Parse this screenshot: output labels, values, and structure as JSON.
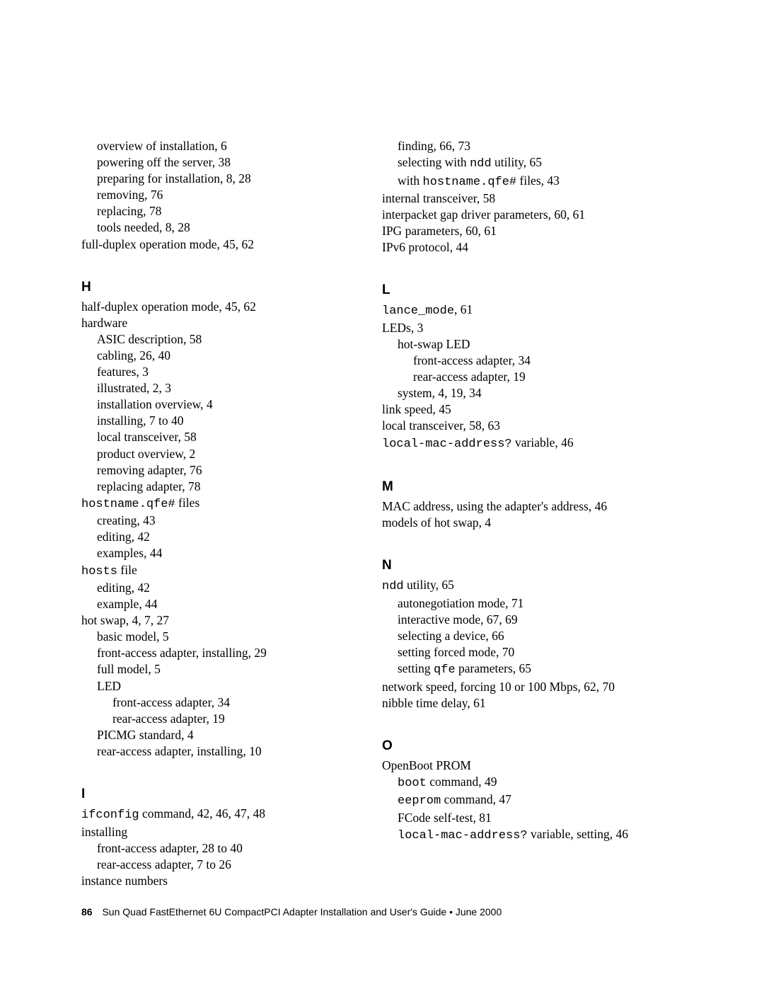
{
  "leftCol": {
    "top": [
      {
        "t": "overview of installation,  6",
        "i": 1
      },
      {
        "t": "powering off the server,  38",
        "i": 1
      },
      {
        "t": "preparing for installation,  8, 28",
        "i": 1
      },
      {
        "t": "removing,  76",
        "i": 1
      },
      {
        "t": "replacing,  78",
        "i": 1
      },
      {
        "t": "tools needed,  8, 28",
        "i": 1
      },
      {
        "t": "full-duplex operation mode,  45, 62",
        "i": 0
      }
    ],
    "H_heading": "H",
    "H": [
      {
        "t": "half-duplex operation mode,  45, 62",
        "i": 0
      },
      {
        "t": "hardware",
        "i": 0
      },
      {
        "t": "ASIC description,  58",
        "i": 1
      },
      {
        "t": "cabling,  26, 40",
        "i": 1
      },
      {
        "t": "features,  3",
        "i": 1
      },
      {
        "t": "illustrated,  2, 3",
        "i": 1
      },
      {
        "t": "installation overview,  4",
        "i": 1
      },
      {
        "t": "installing,  7 to 40",
        "i": 1
      },
      {
        "t": "local transceiver,  58",
        "i": 1
      },
      {
        "t": "product overview,  2",
        "i": 1
      },
      {
        "t": "removing adapter,  76",
        "i": 1
      },
      {
        "t": "replacing adapter,  78",
        "i": 1
      },
      {
        "pre": "hostname.qfe#",
        "post": " files",
        "i": 0,
        "monoFirst": true
      },
      {
        "t": "creating,  43",
        "i": 1
      },
      {
        "t": "editing,  42",
        "i": 1
      },
      {
        "t": "examples,  44",
        "i": 1
      },
      {
        "pre": "hosts",
        "post": " file",
        "i": 0,
        "monoFirst": true
      },
      {
        "t": "editing,  42",
        "i": 1
      },
      {
        "t": "example,  44",
        "i": 1
      },
      {
        "t": "hot swap,  4, 7, 27",
        "i": 0
      },
      {
        "t": "basic model,  5",
        "i": 1
      },
      {
        "t": "front-access adapter, installing,  29",
        "i": 1
      },
      {
        "t": "full model,  5",
        "i": 1
      },
      {
        "t": "LED",
        "i": 1
      },
      {
        "t": "front-access adapter,  34",
        "i": 2
      },
      {
        "t": "rear-access adapter,  19",
        "i": 2
      },
      {
        "t": "PICMG standard,  4",
        "i": 1
      },
      {
        "t": "rear-access adapter, installing,  10",
        "i": 1
      }
    ],
    "I_heading": "I",
    "I": [
      {
        "pre": "ifconfig",
        "post": " command,  42, 46, 47, 48",
        "i": 0,
        "monoFirst": true
      },
      {
        "t": "installing",
        "i": 0
      },
      {
        "t": "front-access adapter,  28 to 40",
        "i": 1
      },
      {
        "t": "rear-access adapter,  7 to 26",
        "i": 1
      },
      {
        "t": "instance numbers",
        "i": 0
      }
    ]
  },
  "rightCol": {
    "top": [
      {
        "t": "finding,  66, 73",
        "i": 1
      },
      {
        "pre": "selecting with ",
        "mono": "ndd",
        "post": " utility,  65",
        "i": 1,
        "midMono": true
      },
      {
        "pre": "with ",
        "mono": "hostname.qfe#",
        "post": " files,  43",
        "i": 1,
        "midMono": true
      },
      {
        "t": "internal transceiver,  58",
        "i": 0
      },
      {
        "t": "interpacket gap driver parameters,  60, 61",
        "i": 0
      },
      {
        "t": "IPG parameters,  60, 61",
        "i": 0
      },
      {
        "t": "IPv6 protocol,  44",
        "i": 0
      }
    ],
    "L_heading": "L",
    "L": [
      {
        "pre": "lance_mode",
        "post": ",  61",
        "i": 0,
        "monoFirst": true
      },
      {
        "t": "LEDs,  3",
        "i": 0
      },
      {
        "t": "hot-swap LED",
        "i": 1
      },
      {
        "t": "front-access adapter,  34",
        "i": 2
      },
      {
        "t": "rear-access adapter,  19",
        "i": 2
      },
      {
        "t": "system,  4, 19, 34",
        "i": 1
      },
      {
        "t": "link speed,  45",
        "i": 0
      },
      {
        "t": "local transceiver,  58, 63",
        "i": 0
      },
      {
        "pre": "local-mac-address?",
        "post": " variable,  46",
        "i": 0,
        "monoFirst": true
      }
    ],
    "M_heading": "M",
    "M": [
      {
        "t": "MAC address, using the adapter's address,  46",
        "i": 0
      },
      {
        "t": "models of hot swap,  4",
        "i": 0
      }
    ],
    "N_heading": "N",
    "N": [
      {
        "pre": "ndd",
        "post": " utility,  65",
        "i": 0,
        "monoFirst": true
      },
      {
        "t": "autonegotiation mode,  71",
        "i": 1
      },
      {
        "t": "interactive mode,  67, 69",
        "i": 1
      },
      {
        "t": "selecting a device,  66",
        "i": 1
      },
      {
        "t": "setting forced mode,  70",
        "i": 1
      },
      {
        "pre": "setting ",
        "mono": "qfe",
        "post": " parameters,  65",
        "i": 1,
        "midMono": true
      },
      {
        "t": "network speed, forcing 10 or 100 Mbps,  62, 70",
        "i": 0
      },
      {
        "t": "nibble time delay,  61",
        "i": 0
      }
    ],
    "O_heading": "O",
    "O": [
      {
        "t": "OpenBoot PROM",
        "i": 0
      },
      {
        "pre": "boot",
        "post": " command,  49",
        "i": 1,
        "monoFirst": true
      },
      {
        "pre": "eeprom",
        "post": " command,  47",
        "i": 1,
        "monoFirst": true
      },
      {
        "t": "FCode self-test,  81",
        "i": 1
      },
      {
        "pre": "local-mac-address?",
        "post": " variable, setting,  46",
        "i": 1,
        "monoFirst": true
      }
    ]
  },
  "footer": {
    "page": "86",
    "title": "Sun Quad FastEthernet 6U CompactPCI Adapter Installation and User's Guide  •  June 2000"
  }
}
